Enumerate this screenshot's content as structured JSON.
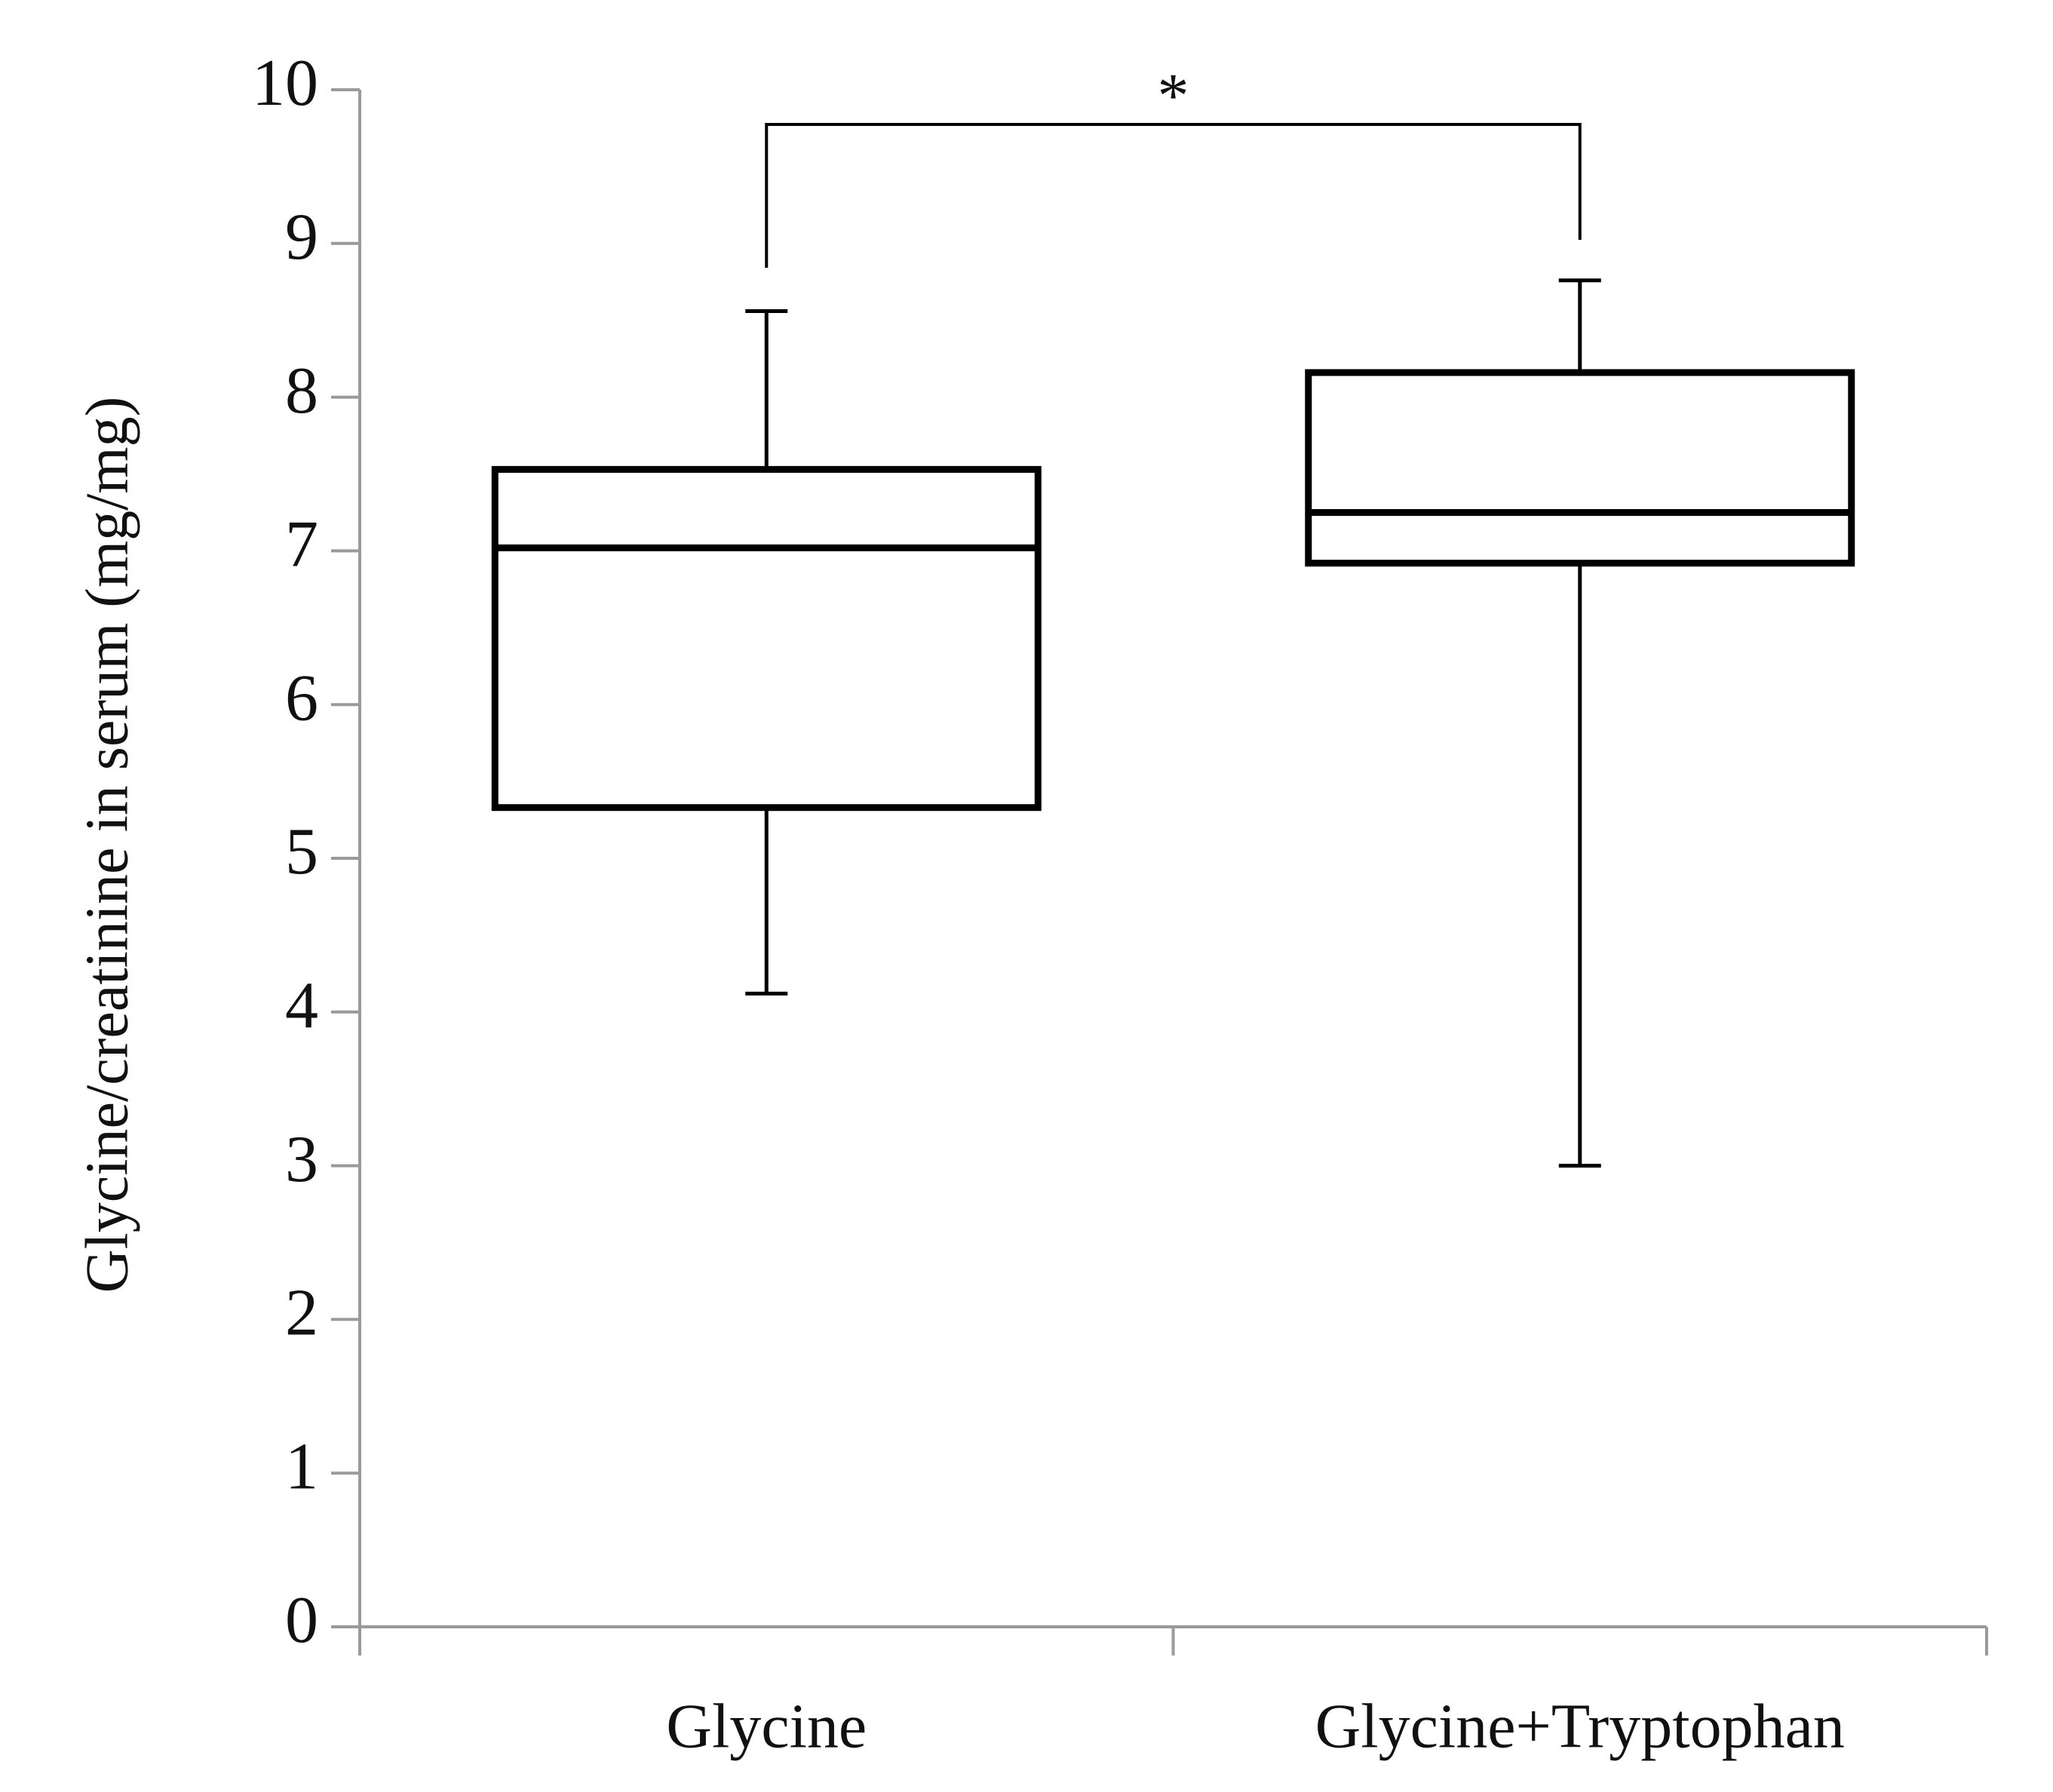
{
  "chart_data": {
    "type": "box",
    "ylabel": "Glycine/creatinine in serum (mg/mg)",
    "categories": [
      "Glycine",
      "Glycine+Tryptophan"
    ],
    "values": [
      {
        "min": 4.12,
        "q1": 5.33,
        "median": 7.02,
        "q3": 7.53,
        "max": 8.56
      },
      {
        "min": 3.0,
        "q1": 6.92,
        "median": 7.25,
        "q3": 8.16,
        "max": 8.76
      }
    ],
    "annotation": "*",
    "color": "#000000",
    "ylim": [
      0,
      10
    ],
    "yticks": [
      0,
      1,
      2,
      3,
      4,
      5,
      6,
      7,
      8,
      9,
      10
    ],
    "grid": false
  }
}
